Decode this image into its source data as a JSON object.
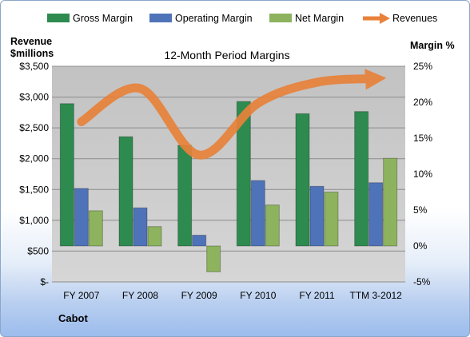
{
  "chart_data": {
    "type": "bar",
    "title": "12-Month Period Margins",
    "company": "Cabot",
    "y_left_label": [
      "Revenue",
      "$millions"
    ],
    "y_right_label": "Margin %",
    "y_left_ticks": [
      "$-",
      "$500",
      "$1,000",
      "$1,500",
      "$2,000",
      "$2,500",
      "$3,000",
      "$3,500"
    ],
    "y_right_ticks": [
      "-5%",
      "0%",
      "5%",
      "10%",
      "15%",
      "20%",
      "25%"
    ],
    "ylim_left": [
      0,
      3500
    ],
    "ylim_right": [
      -5,
      25
    ],
    "categories": [
      "FY 2007",
      "FY 2008",
      "FY 2009",
      "FY 2010",
      "FY 2011",
      "TTM 3-2012"
    ],
    "series": [
      {
        "name": "Gross Margin",
        "axis": "right",
        "color": "#2e8b4f",
        "values": [
          19.8,
          15.2,
          14.0,
          20.1,
          18.4,
          18.7
        ]
      },
      {
        "name": "Operating Margin",
        "axis": "right",
        "color": "#4f73b8",
        "values": [
          8.0,
          5.3,
          1.5,
          9.1,
          8.3,
          8.8
        ]
      },
      {
        "name": "Net Margin",
        "axis": "right",
        "color": "#8db35e",
        "values": [
          4.9,
          2.7,
          -3.6,
          5.7,
          7.5,
          12.2
        ]
      },
      {
        "name": "Revenues",
        "axis": "left",
        "color": "#e8823a",
        "type": "line",
        "values": [
          2600,
          3140,
          2060,
          2900,
          3240,
          3300
        ]
      }
    ],
    "grid": true,
    "legend": "top"
  }
}
